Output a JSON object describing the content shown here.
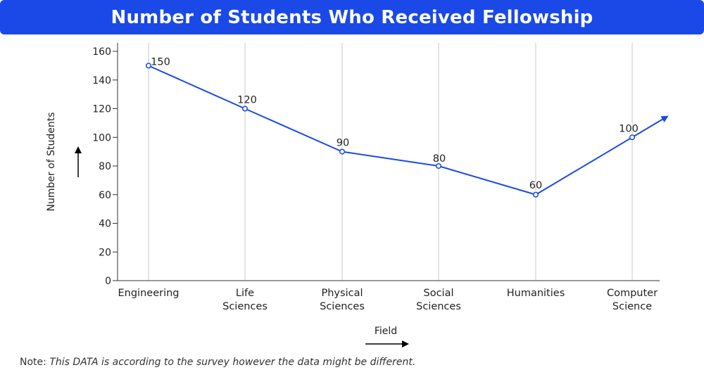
{
  "title": "Number of Students Who Received Fellowship",
  "note_label": "Note:",
  "note_text": "This DATA is according to the survey however the data might be different.",
  "colors": {
    "accent": "#1a49e8",
    "grid": "#c8c8c8",
    "axis": "#333333"
  },
  "chart_data": {
    "type": "line",
    "title": "Number of Students Who Received Fellowship",
    "xlabel": "Field",
    "ylabel": "Number of Students",
    "categories": [
      [
        "Engineering"
      ],
      [
        "Life",
        "Sciences"
      ],
      [
        "Physical",
        "Sciences"
      ],
      [
        "Social",
        "Sciences"
      ],
      [
        "Humanities"
      ],
      [
        "Computer",
        "Science"
      ]
    ],
    "values": [
      150,
      120,
      90,
      80,
      60,
      100
    ],
    "data_labels": [
      "150",
      "120",
      "90",
      "80",
      "60",
      "100"
    ],
    "ylim": [
      0,
      160
    ],
    "yticks": [
      0,
      20,
      40,
      60,
      80,
      100,
      120,
      140,
      160
    ],
    "grid": "vertical",
    "legend": "none",
    "trend_arrow_at_end": true
  }
}
